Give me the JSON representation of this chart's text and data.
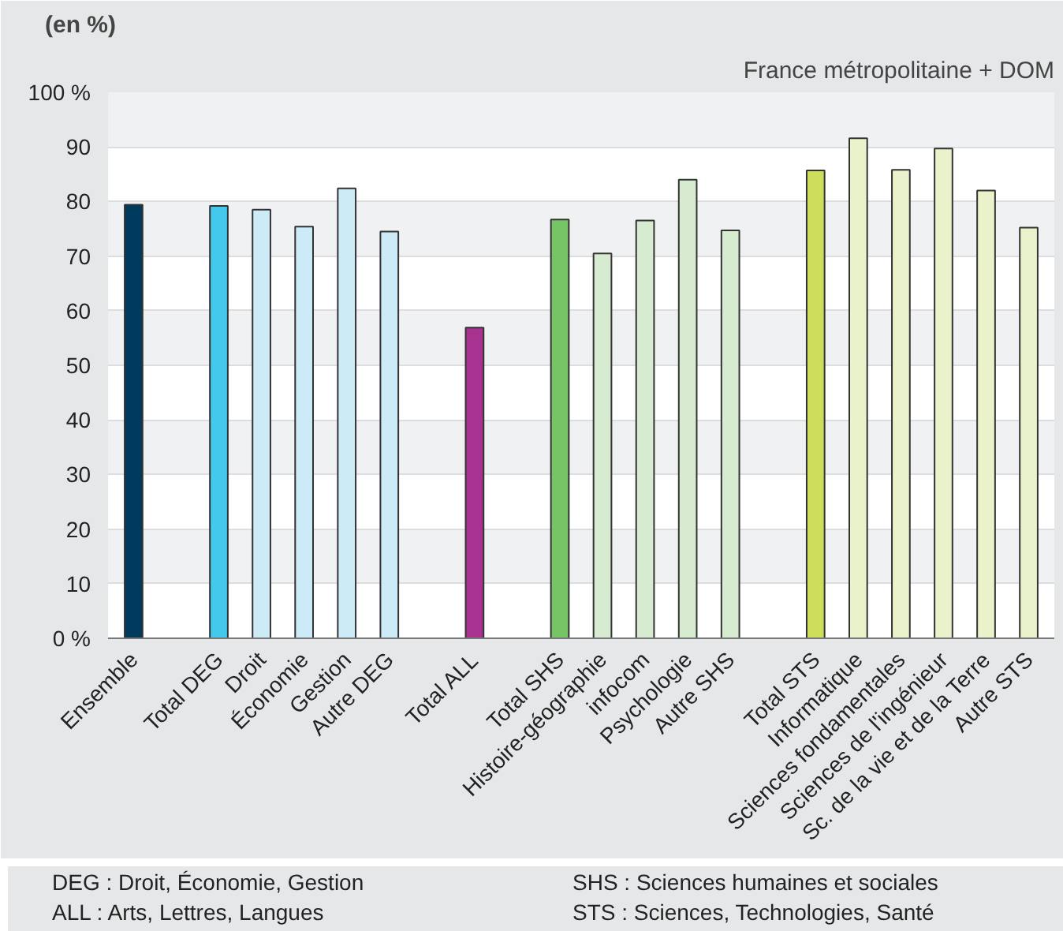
{
  "chart_data": {
    "type": "bar",
    "title": "(en %)",
    "subtitle": "France métropolitaine + DOM",
    "categories": [
      "Ensemble",
      null,
      "Total DEG",
      "Droit",
      "Économie",
      "Gestion",
      "Autre DEG",
      null,
      "Total ALL",
      null,
      "Total SHS",
      "Histoire-géographie",
      "infocom",
      "Psychologie",
      "Autre SHS",
      null,
      "Total STS",
      "Informatique",
      "Sciences fondamentales",
      "Sciences de l'ingénieur",
      "Sc. de la vie et de la Terre",
      "Autre STS"
    ],
    "values": [
      79.4,
      null,
      79.2,
      78.5,
      75.4,
      82.4,
      74.5,
      null,
      56.9,
      null,
      76.7,
      70.5,
      76.5,
      84.0,
      74.7,
      null,
      85.7,
      91.6,
      85.8,
      89.7,
      82.0,
      75.2
    ],
    "colors": [
      "#003a5c",
      null,
      "#44c8ec",
      "#cdeaf7",
      "#cdeaf7",
      "#cdeaf7",
      "#cdeaf7",
      null,
      "#a83290",
      null,
      "#77c467",
      "#d6ebcf",
      "#d6ebcf",
      "#d6ebcf",
      "#d6ebcf",
      null,
      "#cddf5a",
      "#eaf2cc",
      "#eaf2cc",
      "#eaf2cc",
      "#eaf2cc",
      "#eaf2cc"
    ],
    "ylim": [
      0,
      100
    ],
    "yticks": [
      {
        "value": 0,
        "label": "0 %"
      },
      10,
      20,
      30,
      40,
      50,
      60,
      70,
      80,
      90,
      {
        "value": 100,
        "label": "100 %"
      }
    ],
    "grid": "y",
    "annotations": [
      "DEG : Droit, Économie, Gestion",
      "ALL : Arts, Lettres, Langues",
      "SHS : Sciences humaines et sociales",
      "STS : Sciences, Technologies, Santé"
    ]
  }
}
